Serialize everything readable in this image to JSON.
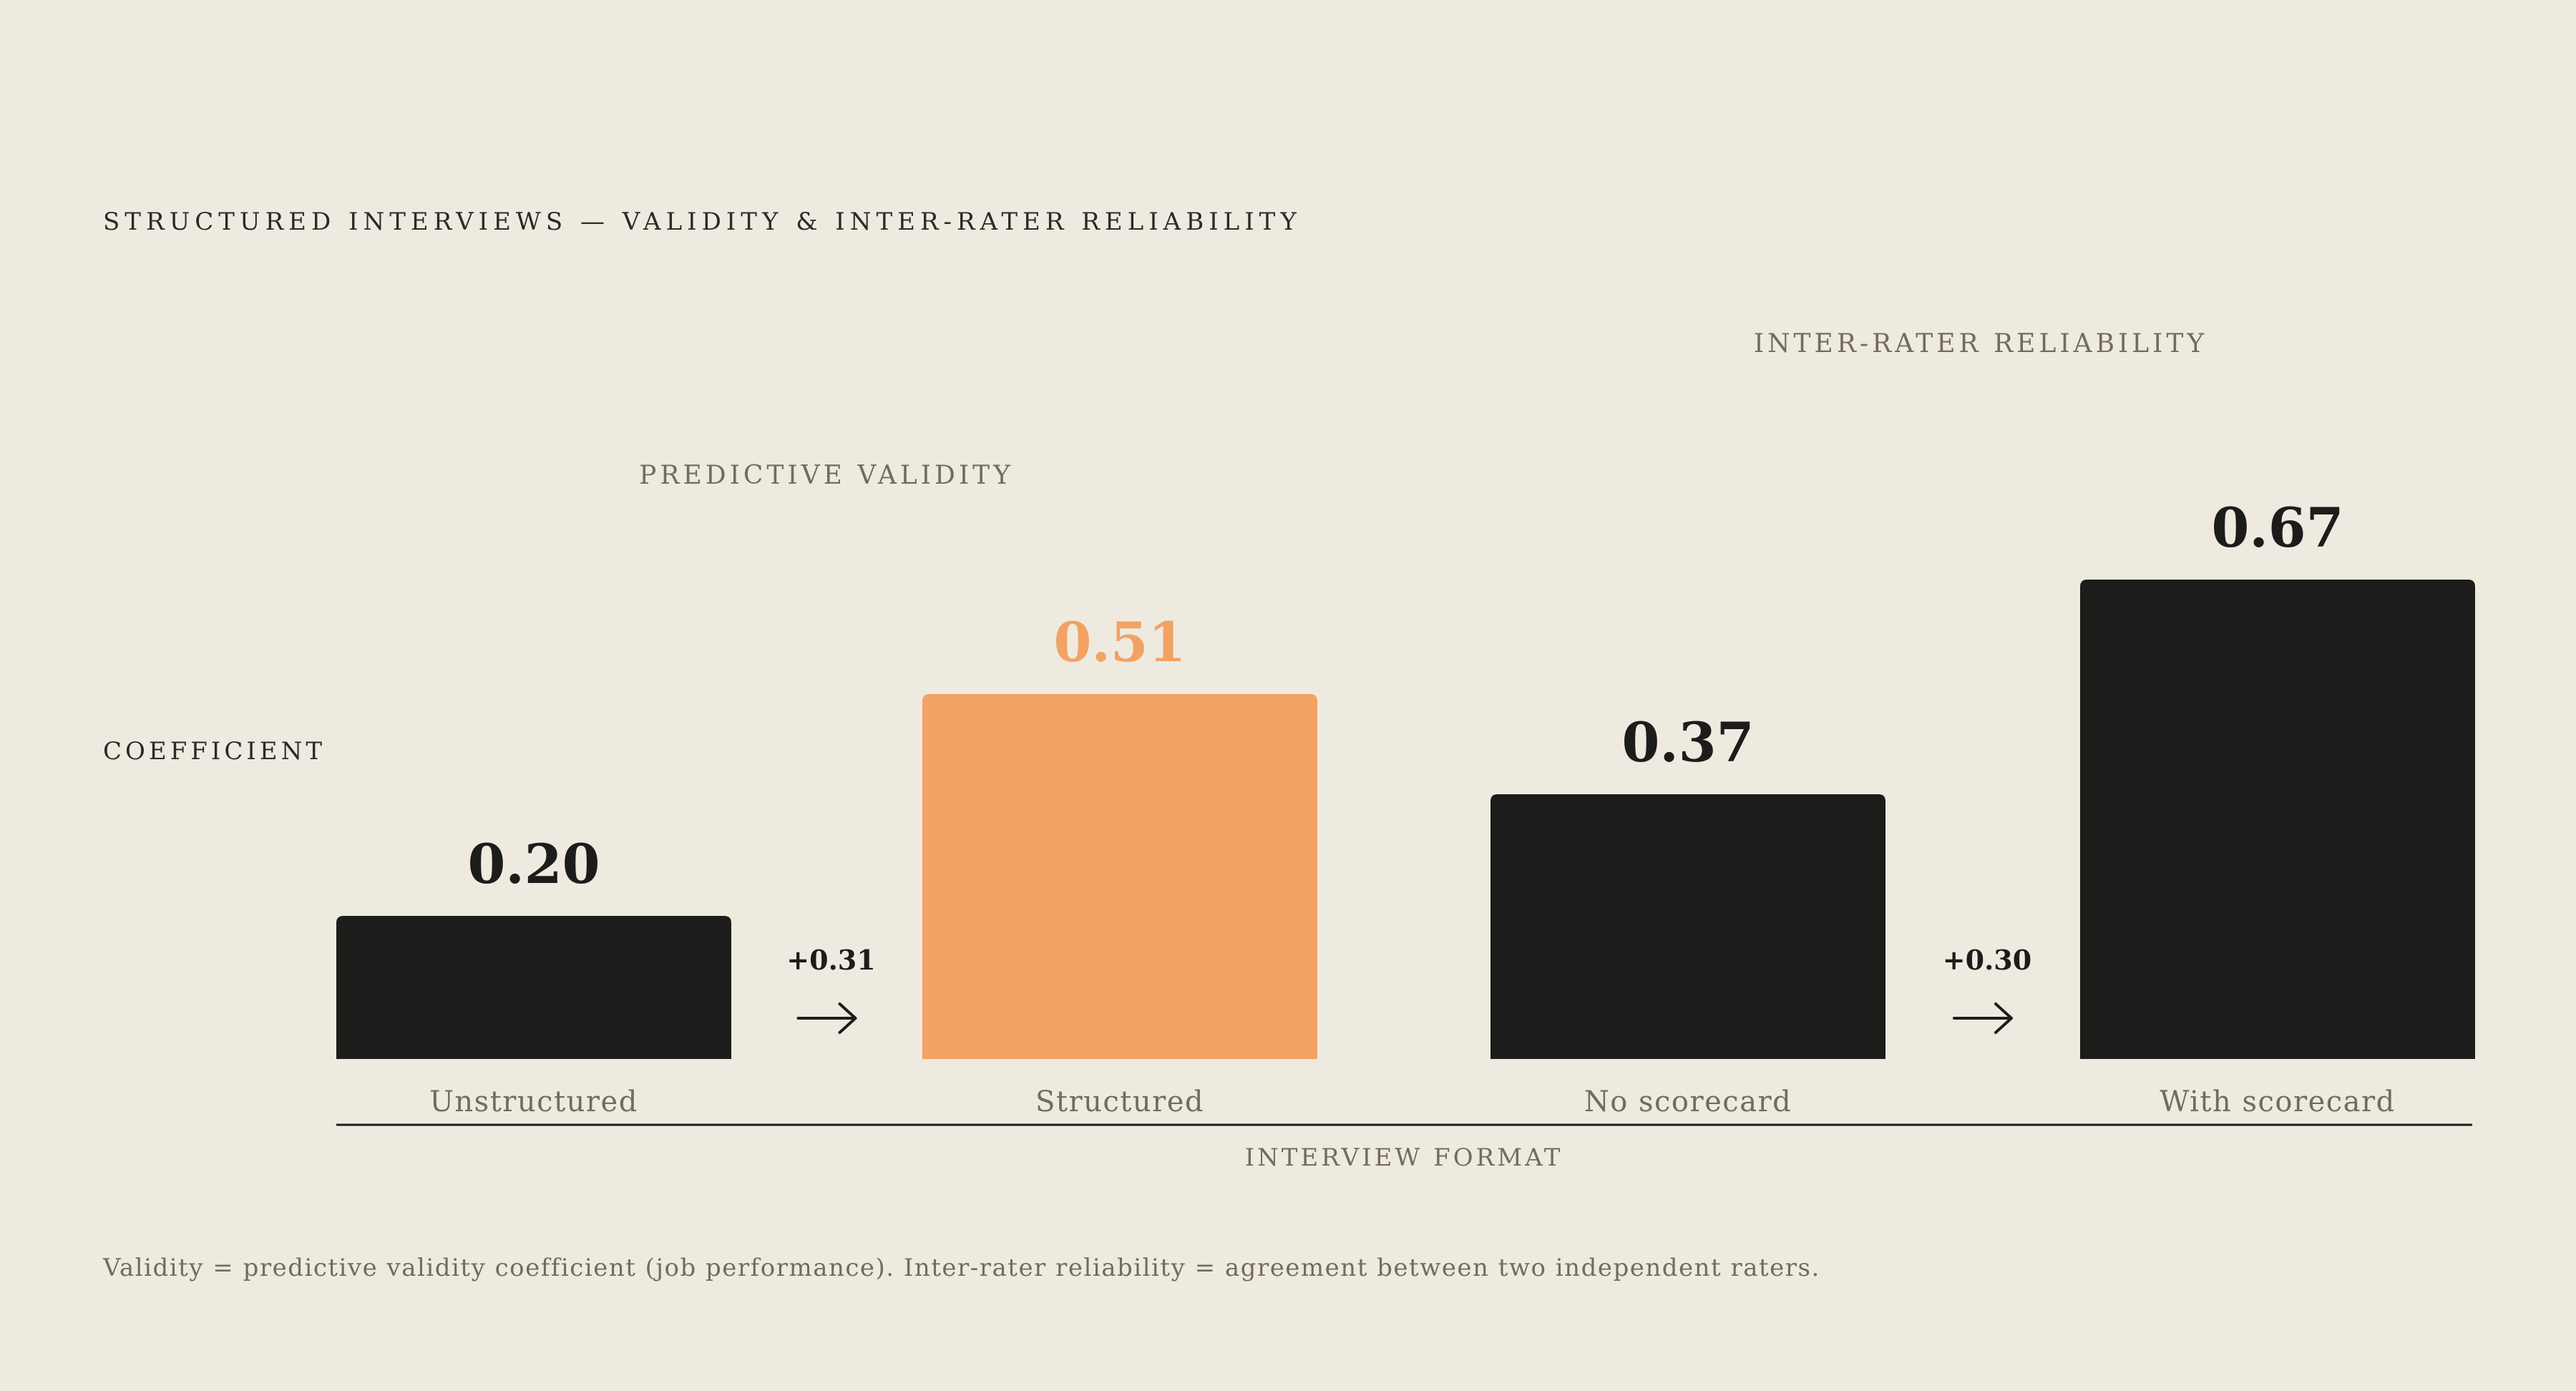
{
  "colors": {
    "background": "#efeae0",
    "bar_default": "#1c1c1a",
    "bar_highlight": "#f2a263",
    "muted_text": "#716b62"
  },
  "chart_data": {
    "type": "bar",
    "title": "STRUCTURED INTERVIEWS — VALIDITY & INTER-RATER RELIABILITY",
    "ylabel": "COEFFICIENT",
    "xlabel": "INTERVIEW FORMAT",
    "ylim": [
      0,
      0.78
    ],
    "grid": false,
    "groups": [
      {
        "label": "PREDICTIVE VALIDITY",
        "categories": [
          "Unstructured",
          "Structured"
        ],
        "values": [
          0.2,
          0.51
        ],
        "value_labels": [
          "0.20",
          "0.51"
        ],
        "highlight": [
          false,
          true
        ],
        "delta_label": "+0.31"
      },
      {
        "label": "INTER-RATER RELIABILITY",
        "categories": [
          "No scorecard",
          "With scorecard"
        ],
        "values": [
          0.37,
          0.67
        ],
        "value_labels": [
          "0.37",
          "0.67"
        ],
        "highlight": [
          false,
          false
        ],
        "delta_label": "+0.30"
      }
    ],
    "note": "Validity = predictive validity coefficient (job performance). Inter-rater reliability = agreement between two independent raters."
  }
}
